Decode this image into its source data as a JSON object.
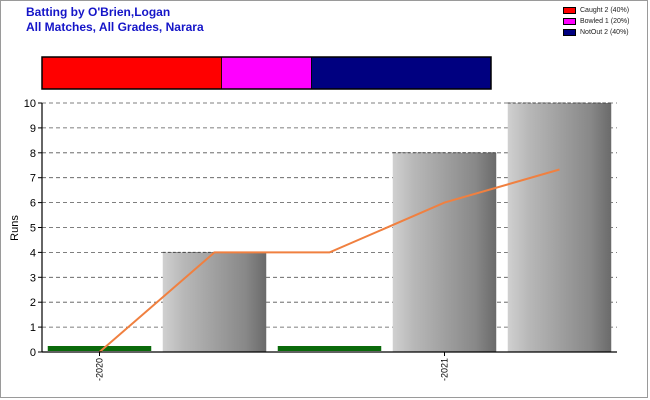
{
  "title": "Batting by O'Brien,Logan",
  "subtitle": "All Matches, All Grades, Narara",
  "legend": [
    {
      "label": "Caught 2 (40%)",
      "color": "#ff0000",
      "share": 0.4
    },
    {
      "label": "Bowled 1 (20%)",
      "color": "#ff00ff",
      "share": 0.2
    },
    {
      "label": "NotOut 2 (40%)",
      "color": "#000080",
      "share": 0.4
    }
  ],
  "chart_data": {
    "type": "bar",
    "ylabel": "Runs",
    "ylim": [
      0,
      10
    ],
    "yticks": [
      "0",
      "1",
      "2",
      "3",
      "4",
      "5",
      "6",
      "7",
      "8",
      "9",
      "10"
    ],
    "xtick_labels": [
      {
        "label": "2020",
        "at_innings": 1
      },
      {
        "label": "2021",
        "at_innings": 4
      }
    ],
    "series": [
      {
        "values": [
          0,
          4,
          0,
          8,
          10
        ],
        "color": "#888888"
      },
      {
        "values": [
          0,
          4,
          4,
          6,
          7.33
        ],
        "color": "#f08040"
      }
    ],
    "duck_color": "#0a6a0a",
    "grid": true
  }
}
